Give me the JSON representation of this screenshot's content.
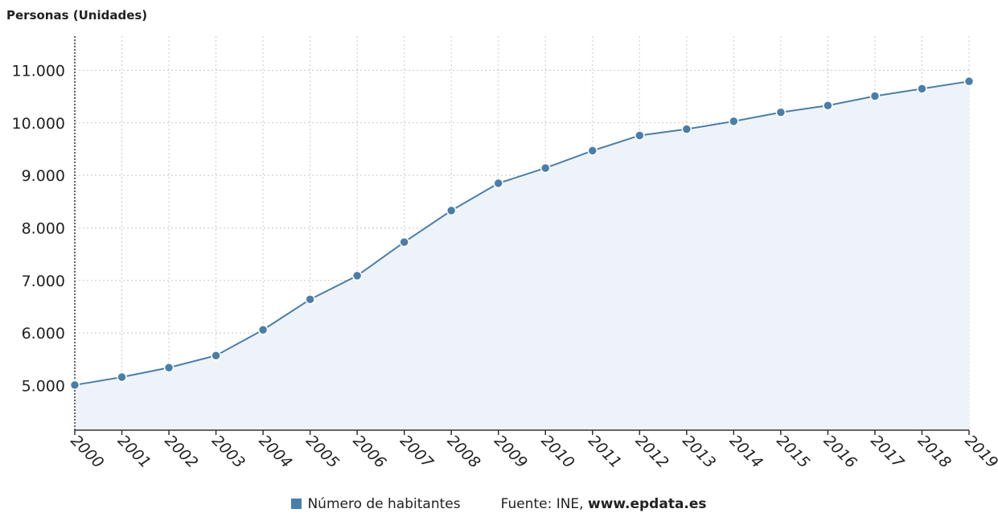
{
  "chart_data": {
    "type": "area",
    "ylabel": "Personas (Unidades)",
    "x": [
      "2000",
      "2001",
      "2002",
      "2003",
      "2004",
      "2005",
      "2006",
      "2007",
      "2008",
      "2009",
      "2010",
      "2011",
      "2012",
      "2013",
      "2014",
      "2015",
      "2016",
      "2017",
      "2018",
      "2019"
    ],
    "series": [
      {
        "name": "Número de habitantes",
        "values": [
          5010,
          5160,
          5340,
          5570,
          6060,
          6640,
          7090,
          7730,
          8330,
          8850,
          9140,
          9470,
          9760,
          9880,
          10030,
          10200,
          10330,
          10510,
          10650,
          10790
        ]
      }
    ],
    "yticks": [
      5000,
      6000,
      7000,
      8000,
      9000,
      10000,
      11000
    ],
    "ytick_labels": [
      "5.000",
      "6.000",
      "7.000",
      "8.000",
      "9.000",
      "10.000",
      "11.000"
    ],
    "ylim": [
      4150,
      11650
    ],
    "grid": true,
    "colors": {
      "line": "#4a7eaa",
      "fill": "#eef3f9",
      "grid": "#c8c8c8"
    }
  },
  "legend": {
    "series_label": "Número de habitantes",
    "source_prefix": "Fuente: INE, ",
    "source_site": "www.epdata.es"
  }
}
